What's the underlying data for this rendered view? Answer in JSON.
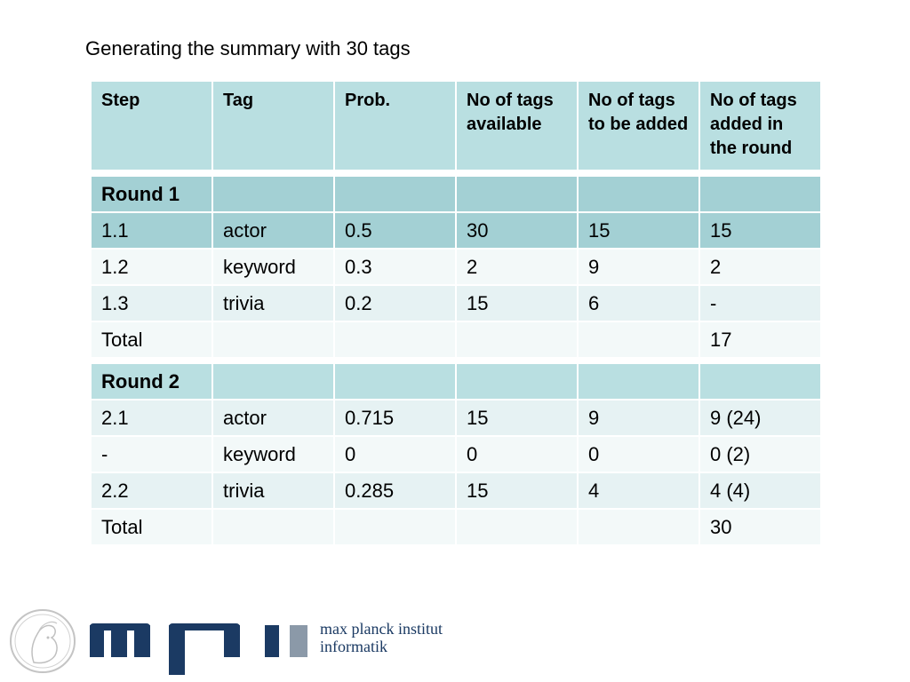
{
  "title": "Generating the summary with 30 tags",
  "table": {
    "headers": [
      "Step",
      "Tag",
      "Prob.",
      "No of tags available",
      "No of tags to be added",
      "No of tags added in the round"
    ],
    "round1": {
      "label": "Round 1",
      "rows": [
        [
          "1.1",
          "actor",
          "0.5",
          "30",
          "15",
          "15"
        ],
        [
          "1.2",
          "keyword",
          "0.3",
          "2",
          "9",
          "2"
        ],
        [
          "1.3",
          "trivia",
          "0.2",
          "15",
          "6",
          "-"
        ]
      ],
      "total_label": "Total",
      "total_value": "17"
    },
    "round2": {
      "label": "Round 2",
      "rows": [
        [
          "2.1",
          "actor",
          "0.715",
          "15",
          "9",
          "9 (24)"
        ],
        [
          "-",
          "keyword",
          "0",
          "0",
          "0",
          "0 (2)"
        ],
        [
          "2.2",
          "trivia",
          "0.285",
          "15",
          "4",
          "4 (4)"
        ]
      ],
      "total_label": "Total",
      "total_value": "30"
    }
  },
  "logo": {
    "line1": "max planck institut",
    "line2": "informatik",
    "brand_color": "#1b3a63"
  }
}
